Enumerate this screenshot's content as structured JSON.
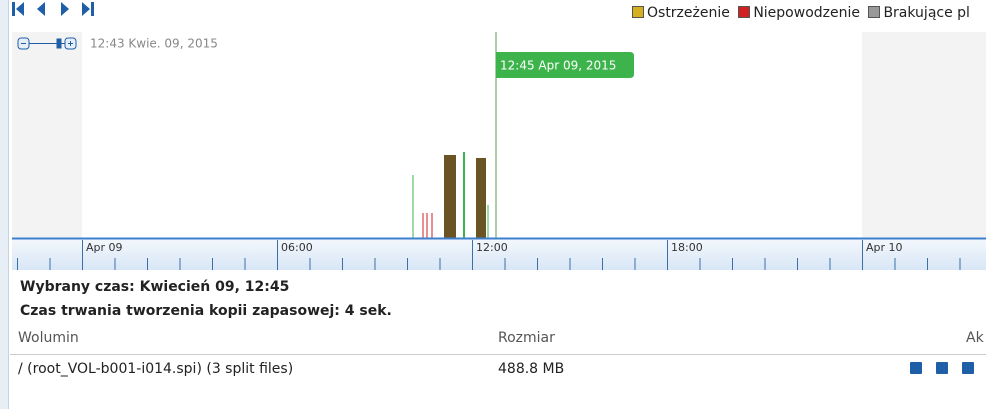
{
  "legend": {
    "items": [
      "Ostrzeżenie",
      "Niepowodzenie",
      "Brakujące pl"
    ]
  },
  "timeline": {
    "zoom_label": "12:43 Kwie. 09, 2015",
    "tooltip": "12:45 Apr 09, 2015",
    "axis_labels": [
      "Apr 09",
      "06:00",
      "12:00",
      "18:00",
      "Apr 10"
    ]
  },
  "info": {
    "selected_time": "Wybrany czas: Kwiecień 09, 12:45",
    "duration": "Czas trwania tworzenia kopii zapasowej: 4 sek."
  },
  "table": {
    "headers": [
      "Wolumin",
      "Rozmiar",
      "Ak"
    ],
    "rows": [
      [
        "/ (root_VOL-b001-i014.spi) (3 split files)",
        "488.8 MB"
      ]
    ]
  }
}
